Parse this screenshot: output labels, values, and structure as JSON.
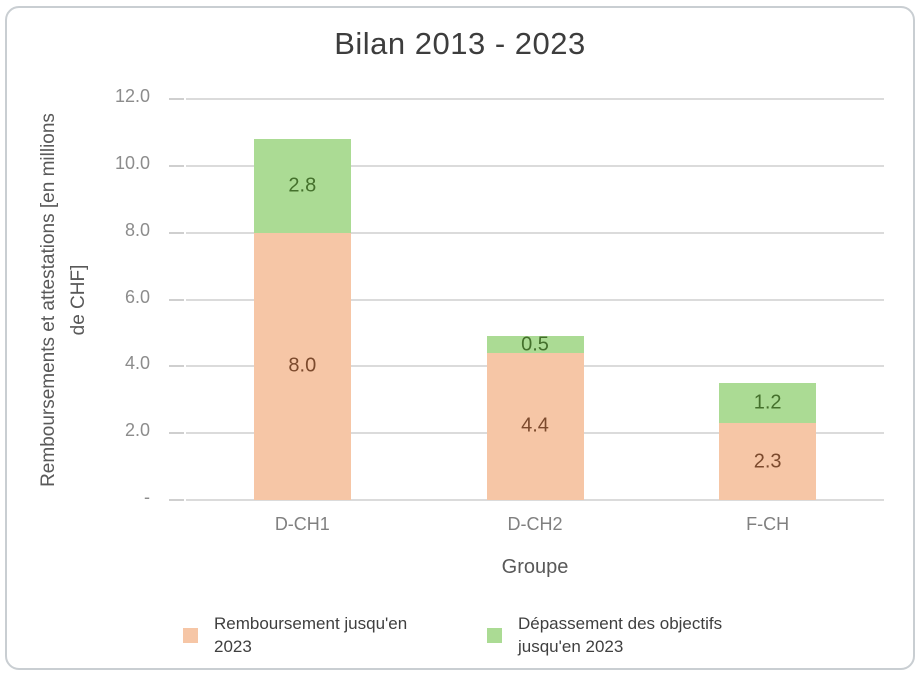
{
  "chart_data": {
    "type": "bar",
    "stacked": true,
    "title": "Bilan 2013 - 2023",
    "xlabel": "Groupe",
    "ylabel_line1": "Remboursements et attestations [en millions",
    "ylabel_line2": "de CHF]",
    "categories": [
      "D-CH1",
      "D-CH2",
      "F-CH"
    ],
    "series": [
      {
        "name": "Remboursement jusqu'en 2023",
        "color": "#F6C6A6",
        "label_color": "#7C4A2D",
        "values": [
          8.0,
          4.4,
          2.3
        ]
      },
      {
        "name": "Dépassement des objectifs jusqu'en 2023",
        "color": "#ABDB94",
        "label_color": "#44702C",
        "values": [
          2.8,
          0.5,
          1.2
        ]
      }
    ],
    "ylim": [
      0,
      12
    ],
    "yticks": [
      {
        "value": 0,
        "label": "-"
      },
      {
        "value": 2,
        "label": "2.0"
      },
      {
        "value": 4,
        "label": "4.0"
      },
      {
        "value": 6,
        "label": "6.0"
      },
      {
        "value": 8,
        "label": "8.0"
      },
      {
        "value": 10,
        "label": "10.0"
      },
      {
        "value": 12,
        "label": "12.0"
      }
    ],
    "grid": true,
    "legend_position": "bottom"
  }
}
